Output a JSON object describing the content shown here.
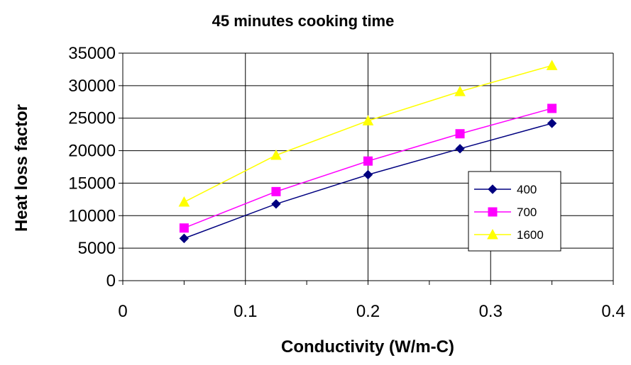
{
  "chart_data": {
    "type": "line",
    "title": "45 minutes cooking time",
    "xlabel": "Conductivity (W/m-C)",
    "ylabel": "Heat loss factor",
    "xlim": [
      0,
      0.4
    ],
    "ylim": [
      0,
      35000
    ],
    "x_ticks": [
      "0",
      "0.1",
      "0.2",
      "0.3",
      "0.4"
    ],
    "y_ticks": [
      "0",
      "5000",
      "10000",
      "15000",
      "20000",
      "25000",
      "30000",
      "35000"
    ],
    "x_tick_values": [
      0,
      0.1,
      0.2,
      0.3,
      0.4
    ],
    "y_tick_values": [
      0,
      5000,
      10000,
      15000,
      20000,
      25000,
      30000,
      35000
    ],
    "x": [
      0.05,
      0.125,
      0.2,
      0.275,
      0.35
    ],
    "grid": true,
    "legend_position": "right",
    "series": [
      {
        "name": "400",
        "values": [
          6500,
          11800,
          16300,
          20300,
          24200
        ],
        "color": "#000080",
        "marker": "diamond"
      },
      {
        "name": "700",
        "values": [
          8100,
          13700,
          18400,
          22600,
          26500
        ],
        "color": "#ff00ff",
        "marker": "square"
      },
      {
        "name": "1600",
        "values": [
          12100,
          19300,
          24600,
          29100,
          33100
        ],
        "color": "#ffff00",
        "marker": "triangle"
      }
    ]
  }
}
